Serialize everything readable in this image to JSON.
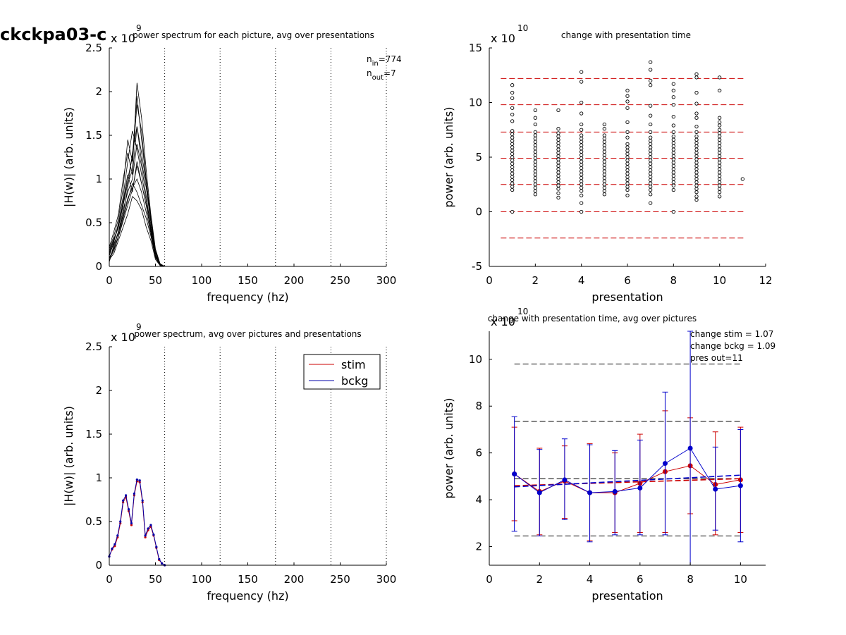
{
  "figure_title": "ckckpa03-c",
  "chart_data": [
    {
      "id": "p1",
      "type": "line",
      "title": "power spectrum for each picture, avg over presentations",
      "xlabel": "frequency (hz)",
      "ylabel": "|H(w)| (arb. units)",
      "y_multiplier": {
        "base": "x 10",
        "exp": "9"
      },
      "xlim": [
        0,
        300
      ],
      "ylim": [
        0,
        2.5
      ],
      "xticks": [
        0,
        50,
        100,
        150,
        200,
        250,
        300
      ],
      "yticks": [
        0,
        0.5,
        1,
        1.5,
        2,
        2.5
      ],
      "vlines": [
        60,
        120,
        180,
        240,
        300
      ],
      "annotation": {
        "n_in": "n",
        "n_in_sub": "in",
        "n_in_val": "=774",
        "n_out": "n",
        "n_out_sub": "out",
        "n_out_val": "=7"
      },
      "series_x": [
        0,
        5,
        10,
        15,
        20,
        25,
        30,
        35,
        40,
        45,
        50,
        55,
        60,
        300
      ],
      "series": [
        {
          "values": [
            0.15,
            0.3,
            0.45,
            0.75,
            1.05,
            0.85,
            1.2,
            0.95,
            0.7,
            0.4,
            0.12,
            0.02,
            0,
            0
          ]
        },
        {
          "values": [
            0.05,
            0.25,
            0.4,
            0.6,
            0.9,
            1.3,
            1.6,
            1.2,
            0.9,
            0.5,
            0.15,
            0.02,
            0,
            0
          ]
        },
        {
          "values": [
            0.1,
            0.2,
            0.35,
            0.55,
            0.75,
            0.95,
            0.85,
            0.7,
            0.55,
            0.35,
            0.1,
            0.01,
            0,
            0
          ]
        },
        {
          "values": [
            0.2,
            0.35,
            0.55,
            0.9,
            1.45,
            1.2,
            1.85,
            1.55,
            1.0,
            0.55,
            0.18,
            0.03,
            0,
            0
          ]
        },
        {
          "values": [
            0.08,
            0.15,
            0.3,
            0.45,
            0.6,
            0.8,
            0.75,
            0.65,
            0.45,
            0.3,
            0.08,
            0.01,
            0,
            0
          ]
        },
        {
          "values": [
            0.12,
            0.28,
            0.5,
            0.8,
            1.2,
            1.55,
            1.35,
            1.05,
            0.75,
            0.45,
            0.12,
            0.02,
            0,
            0
          ]
        },
        {
          "values": [
            0.18,
            0.32,
            0.45,
            0.7,
            0.95,
            1.1,
            2.1,
            1.7,
            1.1,
            0.6,
            0.2,
            0.03,
            0,
            0
          ]
        },
        {
          "values": [
            0.06,
            0.22,
            0.4,
            0.65,
            0.85,
            1.0,
            1.4,
            1.15,
            0.8,
            0.45,
            0.13,
            0.02,
            0,
            0
          ]
        },
        {
          "values": [
            0.14,
            0.26,
            0.38,
            0.58,
            0.78,
            0.9,
            1.0,
            0.85,
            0.62,
            0.38,
            0.11,
            0.01,
            0,
            0
          ]
        },
        {
          "values": [
            0.22,
            0.4,
            0.6,
            1.0,
            1.3,
            1.05,
            1.6,
            1.3,
            0.95,
            0.52,
            0.16,
            0.02,
            0,
            0
          ]
        },
        {
          "values": [
            0.09,
            0.18,
            0.34,
            0.52,
            0.7,
            0.88,
            1.15,
            0.95,
            0.7,
            0.42,
            0.12,
            0.02,
            0,
            0
          ]
        },
        {
          "values": [
            0.16,
            0.3,
            0.48,
            0.72,
            1.0,
            1.25,
            1.95,
            1.45,
            0.98,
            0.55,
            0.17,
            0.03,
            0,
            0
          ]
        }
      ]
    },
    {
      "id": "p2",
      "type": "scatter",
      "title": "change with presentation time",
      "xlabel": "presentation",
      "ylabel": "power (arb. units)",
      "y_multiplier": {
        "base": "x 10",
        "exp": "10"
      },
      "xlim": [
        0,
        12
      ],
      "ylim": [
        -5,
        15
      ],
      "xticks": [
        0,
        2,
        4,
        6,
        8,
        10,
        12
      ],
      "yticks": [
        -5,
        0,
        5,
        10,
        15
      ],
      "hlines": [
        -2.4,
        0,
        2.5,
        4.9,
        7.3,
        9.8,
        12.2
      ],
      "hline_color": "#cc0000",
      "points": [
        {
          "x": 1,
          "y": [
            0,
            2.0,
            2.3,
            2.6,
            2.9,
            3.2,
            3.5,
            3.8,
            4.1,
            4.4,
            4.7,
            5.0,
            5.3,
            5.6,
            5.9,
            6.2,
            6.5,
            6.8,
            7.1,
            7.4,
            8.3,
            8.9,
            9.5,
            10.4,
            10.9,
            11.6
          ]
        },
        {
          "x": 2,
          "y": [
            1.6,
            1.9,
            2.2,
            2.5,
            2.8,
            3.1,
            3.4,
            3.7,
            4.0,
            4.3,
            4.6,
            4.9,
            5.2,
            5.5,
            5.8,
            6.1,
            6.4,
            6.7,
            7.0,
            7.3,
            8.0,
            8.6,
            9.3
          ]
        },
        {
          "x": 3,
          "y": [
            1.3,
            1.7,
            2.1,
            2.4,
            2.7,
            3.0,
            3.3,
            3.6,
            3.9,
            4.2,
            4.5,
            4.8,
            5.1,
            5.4,
            5.7,
            6.0,
            6.3,
            6.6,
            6.9,
            7.2,
            7.6,
            9.3
          ]
        },
        {
          "x": 4,
          "y": [
            0,
            0.8,
            1.5,
            1.9,
            2.2,
            2.5,
            2.8,
            3.1,
            3.4,
            3.7,
            4.0,
            4.3,
            4.6,
            4.9,
            5.2,
            5.5,
            5.8,
            6.1,
            6.4,
            6.7,
            7.0,
            7.5,
            8.0,
            9.0,
            10.0,
            11.9,
            12.8
          ]
        },
        {
          "x": 5,
          "y": [
            1.6,
            1.9,
            2.2,
            2.5,
            2.8,
            3.1,
            3.4,
            3.7,
            4.0,
            4.3,
            4.6,
            4.9,
            5.2,
            5.5,
            5.8,
            6.1,
            6.4,
            6.7,
            7.0,
            7.6,
            8.0
          ]
        },
        {
          "x": 6,
          "y": [
            1.5,
            2.0,
            2.3,
            2.6,
            2.9,
            3.2,
            3.5,
            3.8,
            4.1,
            4.4,
            4.7,
            5.0,
            5.3,
            5.6,
            5.9,
            6.2,
            6.8,
            7.3,
            8.2,
            9.5,
            10.1,
            10.6,
            11.1
          ]
        },
        {
          "x": 7,
          "y": [
            0.8,
            1.6,
            2.0,
            2.3,
            2.6,
            2.9,
            3.2,
            3.5,
            3.8,
            4.1,
            4.4,
            4.7,
            5.0,
            5.3,
            5.6,
            5.9,
            6.2,
            6.5,
            6.8,
            7.3,
            8.0,
            8.8,
            9.7,
            11.6,
            12.0,
            13.0,
            13.7
          ]
        },
        {
          "x": 8,
          "y": [
            0,
            2.0,
            2.4,
            2.7,
            3.0,
            3.3,
            3.6,
            3.9,
            4.2,
            4.5,
            4.8,
            5.1,
            5.4,
            5.7,
            6.0,
            6.3,
            6.6,
            6.9,
            7.3,
            7.9,
            8.7,
            9.8,
            10.5,
            11.1,
            11.7
          ]
        },
        {
          "x": 9,
          "y": [
            1.1,
            1.4,
            1.8,
            2.1,
            2.4,
            2.7,
            3.0,
            3.3,
            3.6,
            3.9,
            4.2,
            4.5,
            4.8,
            5.1,
            5.4,
            5.7,
            6.0,
            6.3,
            6.6,
            6.9,
            7.3,
            7.8,
            8.6,
            9.0,
            9.9,
            10.9,
            12.3,
            12.6
          ]
        },
        {
          "x": 10,
          "y": [
            1.4,
            1.8,
            2.1,
            2.4,
            2.7,
            3.0,
            3.3,
            3.6,
            3.9,
            4.2,
            4.5,
            4.8,
            5.1,
            5.4,
            5.7,
            6.0,
            6.3,
            6.6,
            6.9,
            7.2,
            7.5,
            7.9,
            8.2,
            8.6,
            11.1,
            12.3
          ]
        },
        {
          "x": 11,
          "y": [
            3.0
          ]
        }
      ]
    },
    {
      "id": "p3",
      "type": "line",
      "title": "power spectrum, avg over pictures and presentations",
      "xlabel": "frequency (hz)",
      "ylabel": "|H(w)| (arb. units)",
      "y_multiplier": {
        "base": "x 10",
        "exp": "9"
      },
      "xlim": [
        0,
        300
      ],
      "ylim": [
        0,
        2.5
      ],
      "xticks": [
        0,
        50,
        100,
        150,
        200,
        250,
        300
      ],
      "yticks": [
        0,
        0.5,
        1,
        1.5,
        2,
        2.5
      ],
      "vlines": [
        60,
        120,
        180,
        240,
        300
      ],
      "legend": {
        "position": "top-right"
      },
      "x": [
        0,
        3,
        6,
        9,
        12,
        15,
        18,
        21,
        24,
        27,
        30,
        33,
        36,
        39,
        42,
        45,
        48,
        51,
        54,
        57,
        60,
        300
      ],
      "series": [
        {
          "name": "stim",
          "color": "#cc0000",
          "values": [
            0.1,
            0.18,
            0.22,
            0.32,
            0.48,
            0.72,
            0.78,
            0.62,
            0.46,
            0.8,
            0.96,
            0.95,
            0.72,
            0.32,
            0.4,
            0.44,
            0.34,
            0.2,
            0.06,
            0.02,
            0,
            0
          ]
        },
        {
          "name": "bckg",
          "color": "#0000aa",
          "values": [
            0.1,
            0.19,
            0.24,
            0.34,
            0.5,
            0.74,
            0.8,
            0.64,
            0.48,
            0.82,
            0.98,
            0.97,
            0.74,
            0.34,
            0.42,
            0.46,
            0.35,
            0.21,
            0.07,
            0.02,
            0,
            0
          ]
        }
      ]
    },
    {
      "id": "p4",
      "type": "line",
      "title": "change with presentation time, avg over pictures",
      "xlabel": "presentation",
      "ylabel": "power (arb. units)",
      "y_multiplier": {
        "base": "x 10",
        "exp": "10"
      },
      "xlim": [
        0,
        11
      ],
      "ylim": [
        1.2,
        11.2
      ],
      "xticks": [
        0,
        2,
        4,
        6,
        8,
        10
      ],
      "yticks": [
        2,
        4,
        6,
        8,
        10
      ],
      "hlines": [
        2.45,
        4.9,
        7.35,
        9.8
      ],
      "annotations": [
        "change stim = 1.07",
        "change bckg = 1.09",
        "pres out=11"
      ],
      "x": [
        1,
        2,
        3,
        4,
        5,
        6,
        7,
        8,
        9,
        10
      ],
      "series": [
        {
          "name": "stim",
          "color": "#cc0000",
          "values": [
            5.1,
            4.35,
            4.8,
            4.3,
            4.3,
            4.7,
            5.2,
            5.45,
            4.65,
            4.85
          ],
          "err_lo": [
            3.1,
            2.5,
            3.2,
            2.25,
            2.6,
            2.6,
            2.6,
            3.4,
            2.5,
            2.6
          ],
          "err_hi": [
            7.1,
            6.2,
            6.3,
            6.4,
            6.0,
            6.8,
            7.8,
            7.5,
            6.9,
            7.1
          ],
          "trend": [
            4.6,
            4.9
          ]
        },
        {
          "name": "bckg",
          "color": "#0000cc",
          "values": [
            5.1,
            4.3,
            4.85,
            4.3,
            4.35,
            4.5,
            5.55,
            6.2,
            4.45,
            4.6
          ],
          "err_lo": [
            2.65,
            2.45,
            3.15,
            2.2,
            2.5,
            2.5,
            2.5,
            1.2,
            2.7,
            2.2
          ],
          "err_hi": [
            7.55,
            6.15,
            6.6,
            6.35,
            6.1,
            6.55,
            8.6,
            11.2,
            6.25,
            7.0
          ],
          "trend": [
            4.55,
            5.05
          ]
        }
      ]
    }
  ]
}
